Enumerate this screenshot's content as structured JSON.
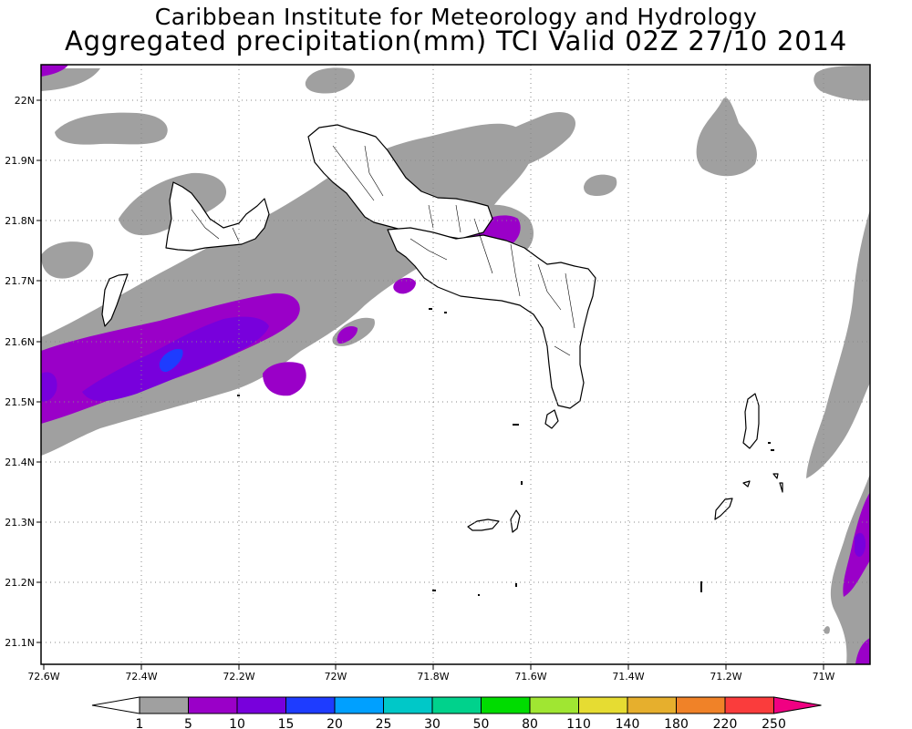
{
  "title": {
    "line1": "Caribbean Institute for Meteorology and Hydrology",
    "line2": "Aggregated precipitation(mm) TCI Valid 02Z 27/10 2014"
  },
  "axes": {
    "lon_labels": [
      "72.6W",
      "72.4W",
      "72.2W",
      "72W",
      "71.8W",
      "71.6W",
      "71.4W",
      "71.2W",
      "71W"
    ],
    "lat_labels": [
      "22N",
      "21.9N",
      "21.8N",
      "21.7N",
      "21.6N",
      "21.5N",
      "21.4N",
      "21.3N",
      "21.2N",
      "21.1N"
    ]
  },
  "colorbar": {
    "levels": [
      "1",
      "5",
      "10",
      "15",
      "20",
      "25",
      "30",
      "50",
      "80",
      "110",
      "140",
      "180",
      "220",
      "250"
    ],
    "colors": [
      "#a0a0a0",
      "#9a00c8",
      "#7800dc",
      "#1e3cff",
      "#00a0ff",
      "#00c8c8",
      "#00d28c",
      "#00dc00",
      "#a0e632",
      "#e6dc32",
      "#e6af2d",
      "#f08228",
      "#fa3c3c",
      "#f00082"
    ]
  },
  "legend_meaning": {
    "gray": "1-5 mm",
    "purple": "5-10 mm",
    "violet": "10-15 mm",
    "blue": "15-20 mm"
  }
}
